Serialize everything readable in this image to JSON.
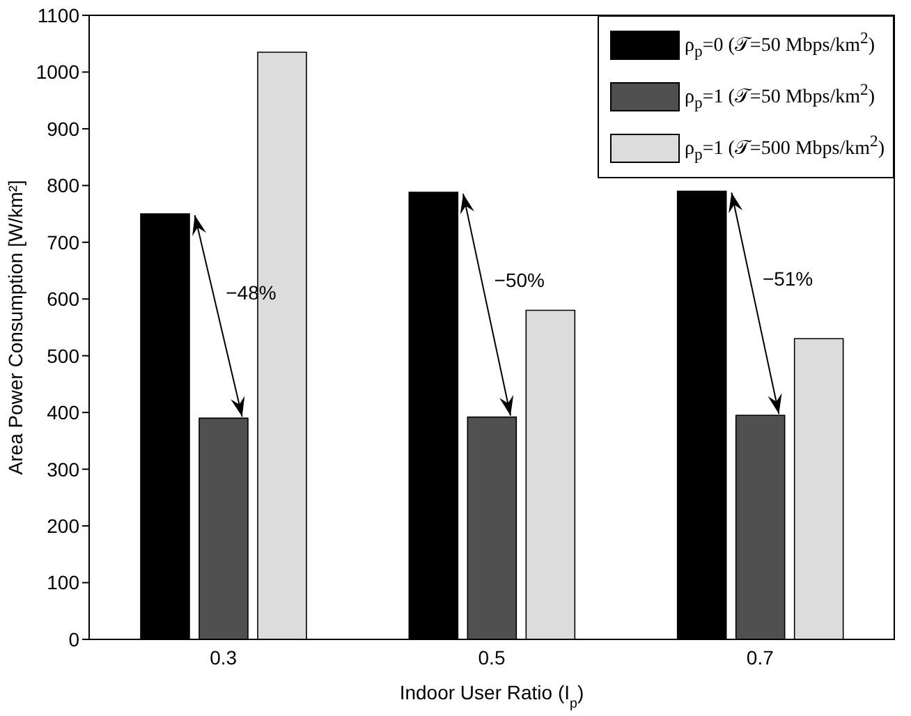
{
  "chart_data": {
    "type": "bar",
    "xlabel": "Indoor User Ratio (I$_{p}$)",
    "ylabel": "Area Power Consumption [W/km²]",
    "categories": [
      "0.3",
      "0.5",
      "0.7"
    ],
    "series": [
      {
        "name": "ρ$_{p}$=0 (𝒯=50 Mbps/km$^{2}$)",
        "color": "#000000",
        "values": [
          750,
          788,
          790
        ]
      },
      {
        "name": "ρ$_{p}$=1 (𝒯=50 Mbps/km$^{2}$)",
        "color": "#505050",
        "values": [
          390,
          392,
          395
        ]
      },
      {
        "name": "ρ$_{p}$=1 (𝒯=500 Mbps/km$^{2}$)",
        "color": "#dcdcdc",
        "values": [
          1035,
          580,
          530
        ]
      }
    ],
    "ylim": [
      0,
      1100
    ],
    "yticks": [
      0,
      100,
      200,
      300,
      400,
      500,
      600,
      700,
      800,
      900,
      1000,
      1100
    ],
    "annotations": [
      "−48%",
      "−50%",
      "−51%"
    ],
    "grid": false,
    "legend": "top right"
  }
}
